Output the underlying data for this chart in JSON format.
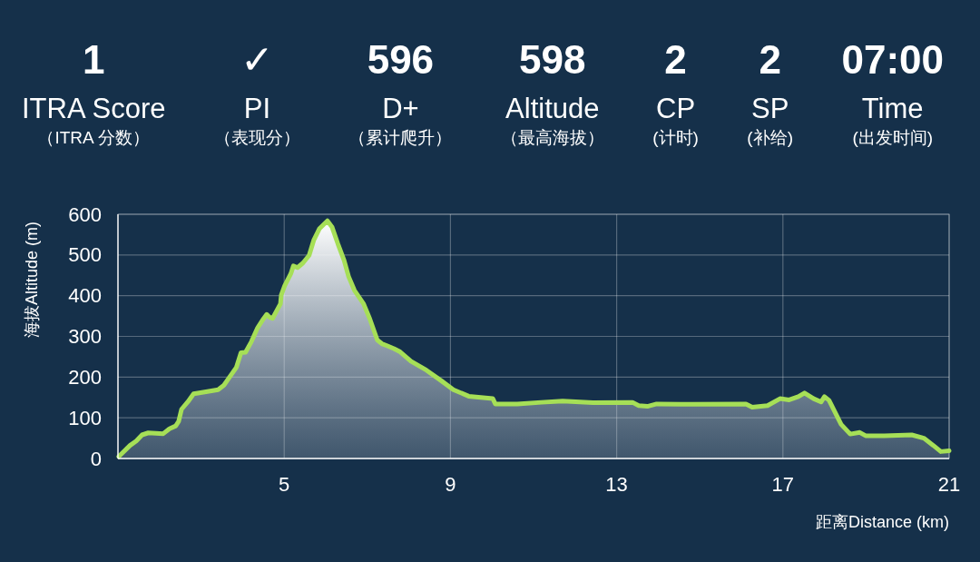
{
  "chart_data": {
    "type": "area",
    "x": [
      1.02,
      1.29,
      1.44,
      1.58,
      1.73,
      2.09,
      2.24,
      2.39,
      2.46,
      2.53,
      2.68,
      2.82,
      3.12,
      3.41,
      3.55,
      3.7,
      3.85,
      3.96,
      4.07,
      4.21,
      4.36,
      4.5,
      4.58,
      4.65,
      4.72,
      4.83,
      4.91,
      4.93,
      5.01,
      5.16,
      5.22,
      5.32,
      5.45,
      5.6,
      5.71,
      5.85,
      6.04,
      6.15,
      6.29,
      6.44,
      6.55,
      6.69,
      6.91,
      7.06,
      7.24,
      7.35,
      7.5,
      7.64,
      7.79,
      8.05,
      8.42,
      8.78,
      9.07,
      9.44,
      10.02,
      10.08,
      10.61,
      11.19,
      11.7,
      12.43,
      13.38,
      13.53,
      13.74,
      13.96,
      14.55,
      16.11,
      16.26,
      16.63,
      16.93,
      17.15,
      17.37,
      17.52,
      17.74,
      17.92,
      18.0,
      18.11,
      18.4,
      18.62,
      18.85,
      18.99,
      19.44,
      20.1,
      20.39,
      20.62,
      20.8,
      21.0
    ],
    "values": [
      5,
      32,
      43,
      58,
      63,
      61,
      73,
      80,
      91,
      121,
      139,
      159,
      164,
      169,
      180,
      202,
      224,
      260,
      261,
      287,
      321,
      343,
      354,
      347,
      344,
      365,
      380,
      402,
      424,
      454,
      473,
      469,
      480,
      499,
      536,
      565,
      584,
      569,
      528,
      487,
      447,
      413,
      380,
      343,
      291,
      282,
      276,
      270,
      262,
      239,
      217,
      191,
      169,
      153,
      147,
      134,
      134,
      138,
      141,
      137,
      138,
      130,
      128,
      134,
      133,
      134,
      126,
      130,
      147,
      144,
      152,
      161,
      147,
      139,
      152,
      143,
      84,
      60,
      64,
      56,
      56,
      58,
      50,
      32,
      17,
      19
    ],
    "color": "#a6df57",
    "xlim": [
      1,
      21
    ],
    "xticks": [
      5,
      9,
      13,
      17,
      21
    ],
    "ylim": [
      0,
      600
    ],
    "yticks": [
      0,
      100,
      200,
      300,
      400,
      500,
      600
    ],
    "xlabel": "距离Distance (km)",
    "ylabel": "海拔Altitude (m)",
    "grid": true,
    "annotations": [
      "1",
      "ITRA Score",
      "（ITRA 分数）",
      "✓",
      "PI",
      "（表现分）",
      "596",
      "D+",
      "（累计爬升）",
      "598",
      "Altitude",
      "（最高海拔）",
      "2",
      "CP",
      "(计时)",
      "2",
      "SP",
      "(补给)",
      "07:00",
      "Time",
      "(出发时间)"
    ]
  }
}
